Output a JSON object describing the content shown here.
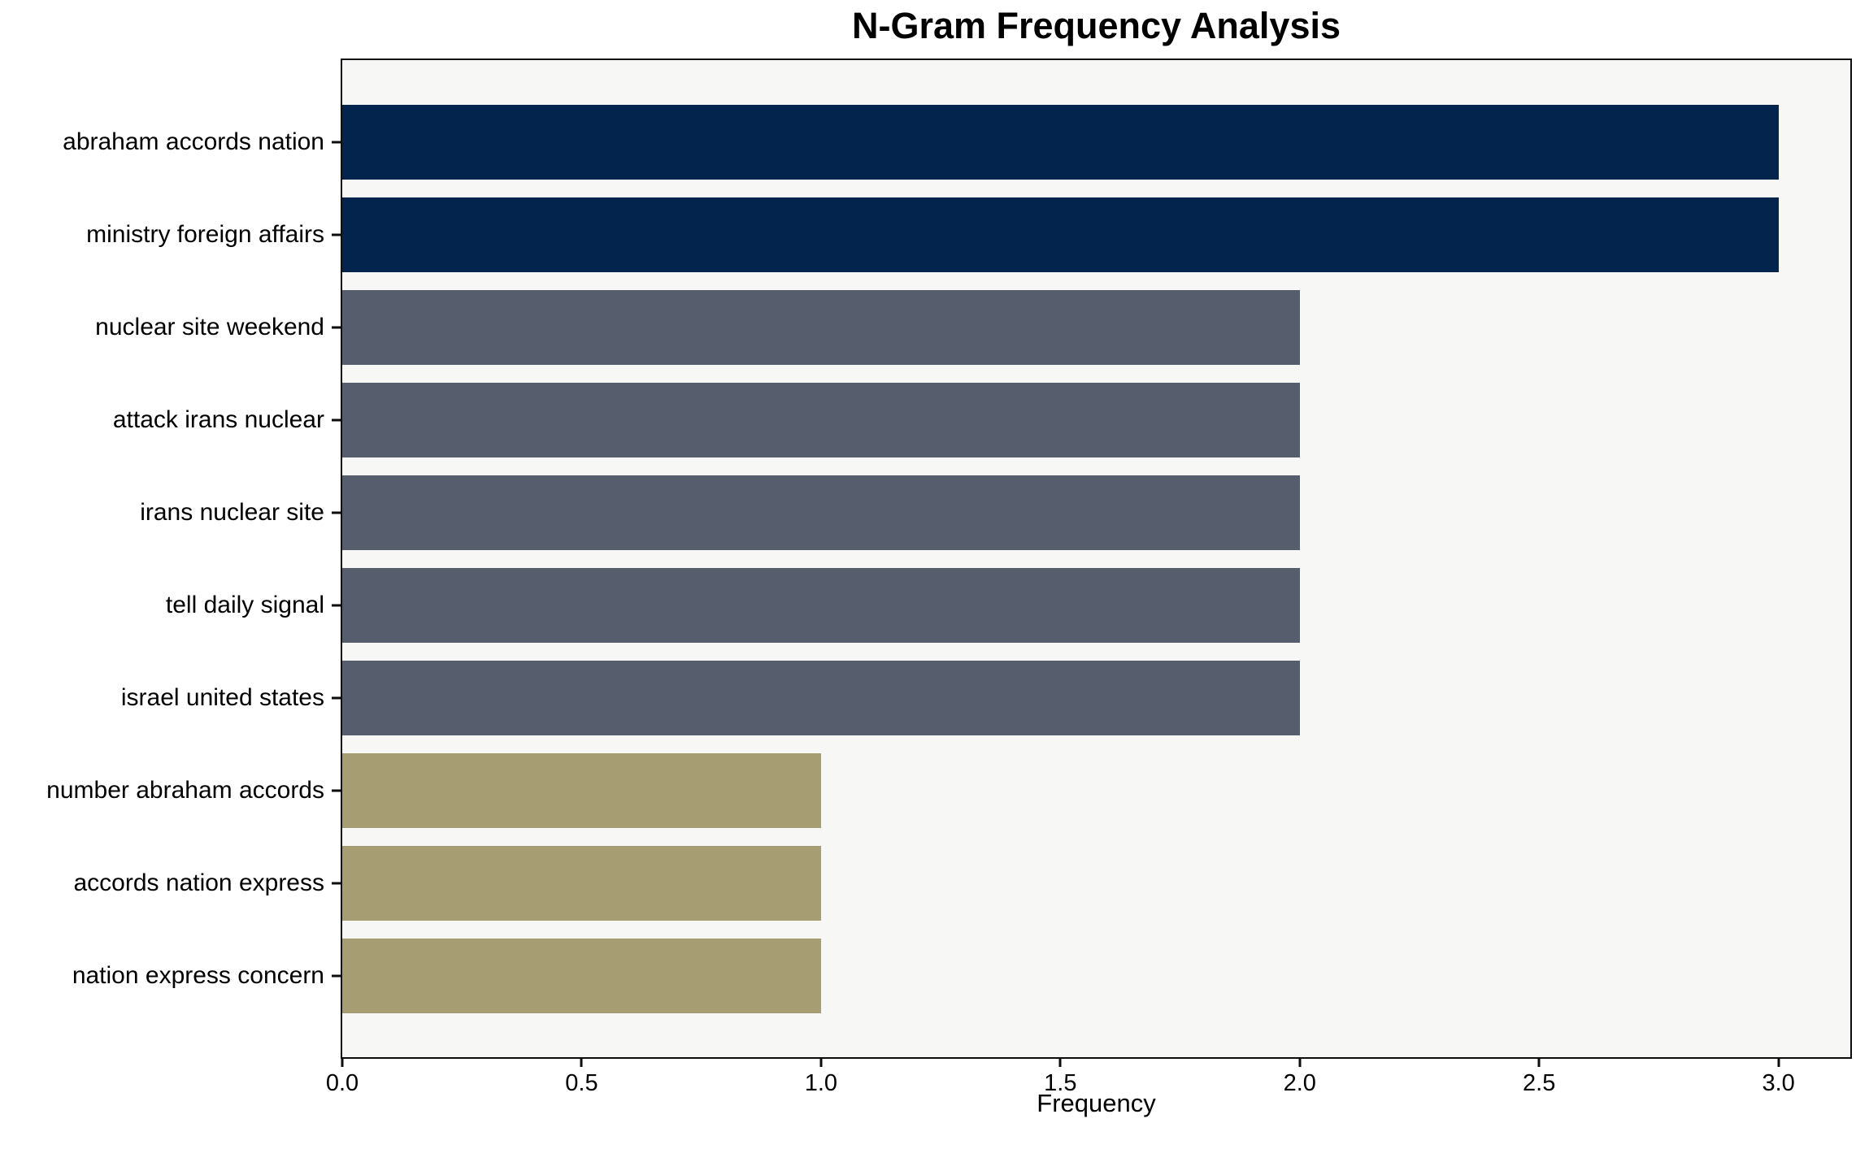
{
  "chart_data": {
    "type": "bar",
    "orientation": "horizontal",
    "title": "N-Gram Frequency Analysis",
    "xlabel": "Frequency",
    "ylabel": "",
    "categories": [
      "abraham accords nation",
      "ministry foreign affairs",
      "nuclear site weekend",
      "attack irans nuclear",
      "irans nuclear site",
      "tell daily signal",
      "israel united states",
      "number abraham accords",
      "accords nation express",
      "nation express concern"
    ],
    "values": [
      3,
      3,
      2,
      2,
      2,
      2,
      2,
      1,
      1,
      1
    ],
    "bar_colors": [
      "#02244d",
      "#02244d",
      "#565d6d",
      "#565d6d",
      "#565d6d",
      "#565d6d",
      "#565d6d",
      "#a69d72",
      "#a69d72",
      "#a69d72"
    ],
    "xtick_labels": [
      "0.0",
      "0.5",
      "1.0",
      "1.5",
      "2.0",
      "2.5",
      "3.0"
    ],
    "xtick_values": [
      0,
      0.5,
      1,
      1.5,
      2,
      2.5,
      3
    ],
    "xlim": [
      0,
      3.15
    ],
    "grid": false,
    "legend": "none",
    "colors": {
      "plot_background": "#f7f7f6",
      "figure_background": "#ffffff",
      "axis_line": "#0d0d0d",
      "text": "#000000"
    }
  }
}
